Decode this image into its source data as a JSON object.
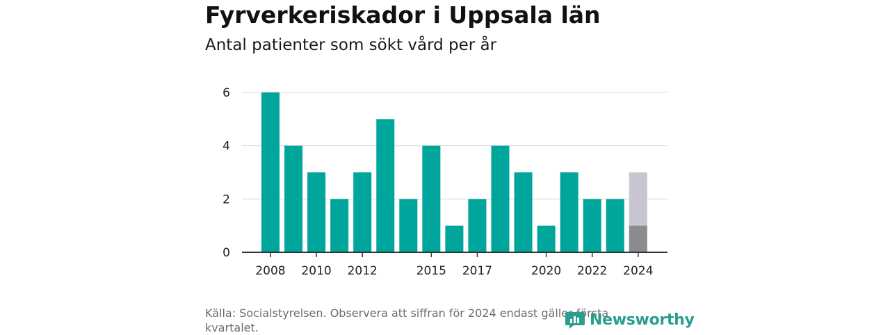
{
  "header": {
    "title": "Fyrverkeriskador i Uppsala län",
    "subtitle": "Antal patienter som sökt vård per år"
  },
  "footer": {
    "source": "Källa: Socialstyrelsen. Observera att siffran för 2024 endast gäller första kvartalet.",
    "brand": "Newsworthy",
    "brand_icon": "newsworthy-logo-icon",
    "brand_color": "#2a9d8f"
  },
  "chart_data": {
    "type": "bar",
    "categories": [
      "2008",
      "2009",
      "2010",
      "2011",
      "2012",
      "2013",
      "2014",
      "2015",
      "2016",
      "2017",
      "2018",
      "2019",
      "2020",
      "2021",
      "2022",
      "2023",
      "2024"
    ],
    "values": [
      6,
      4,
      3,
      2,
      3,
      5,
      2,
      4,
      1,
      2,
      4,
      3,
      1,
      3,
      2,
      2,
      1
    ],
    "highlight": {
      "category": "2024",
      "value": 1,
      "projected_total": 3
    },
    "x_tick_labels": [
      "2008",
      "2010",
      "2012",
      "2015",
      "2017",
      "2020",
      "2022",
      "2024"
    ],
    "y_ticks": [
      0,
      2,
      4,
      6
    ],
    "ylim": [
      0,
      6
    ],
    "grid": true,
    "colors": {
      "bar": "#00a59b",
      "highlight_bar": "#8c8c90",
      "projected_bar": "#c8c7d1",
      "grid": "#d9d9d9",
      "axis": "#333333"
    }
  }
}
